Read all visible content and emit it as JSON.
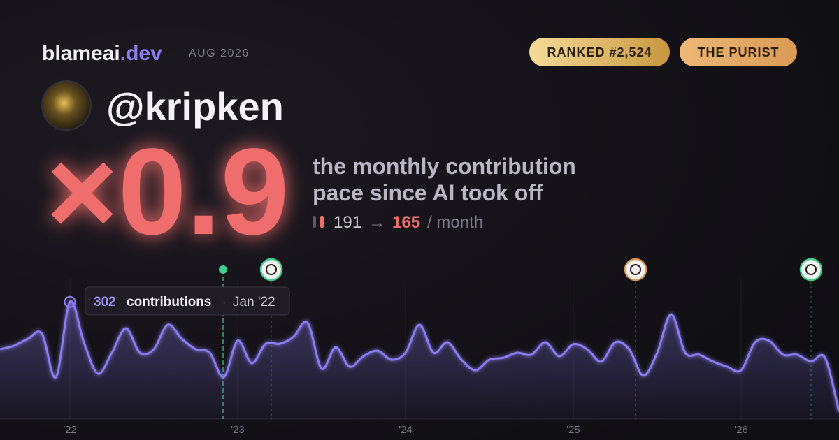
{
  "header": {
    "brand": "blameai",
    "brand_tld": ".dev",
    "period": "AUG 2026",
    "badges": [
      "RANKED #2,524",
      "THE PURIST"
    ],
    "handle": "@kripken"
  },
  "headline": {
    "multiplier": "×0.9",
    "description": [
      "the monthly contribution",
      "pace since AI took off"
    ],
    "before": "191",
    "arrow": "→",
    "after": "165",
    "unit": "/ month"
  },
  "chart_data": {
    "type": "area",
    "color": "#8b7cf0",
    "categories": [
      null,
      null,
      null,
      null,
      null,
      "'22",
      null,
      null,
      null,
      null,
      null,
      null,
      null,
      null,
      null,
      null,
      null,
      "'23",
      null,
      null,
      null,
      null,
      null,
      null,
      null,
      null,
      null,
      null,
      null,
      "'24",
      null,
      null,
      null,
      null,
      null,
      null,
      null,
      null,
      null,
      null,
      null,
      "'25",
      null,
      null,
      null,
      null,
      null,
      null,
      null,
      null,
      null,
      null,
      null,
      "'26",
      null,
      null,
      null,
      null,
      null,
      null,
      null
    ],
    "values": [
      180,
      189,
      207,
      220,
      108,
      302,
      198,
      117,
      171,
      234,
      171,
      180,
      243,
      207,
      180,
      171,
      108,
      202,
      144,
      194,
      194,
      212,
      248,
      130,
      185,
      135,
      162,
      176,
      153,
      171,
      243,
      171,
      198,
      153,
      126,
      153,
      158,
      171,
      166,
      198,
      162,
      193,
      180,
      148,
      198,
      180,
      112,
      171,
      270,
      171,
      166,
      148,
      135,
      126,
      198,
      202,
      166,
      166,
      148,
      158,
      18
    ],
    "ylim": [
      0,
      360
    ],
    "tooltip": {
      "value": 302,
      "label": "contributions",
      "separator": "·",
      "date": "Jan '22"
    }
  }
}
